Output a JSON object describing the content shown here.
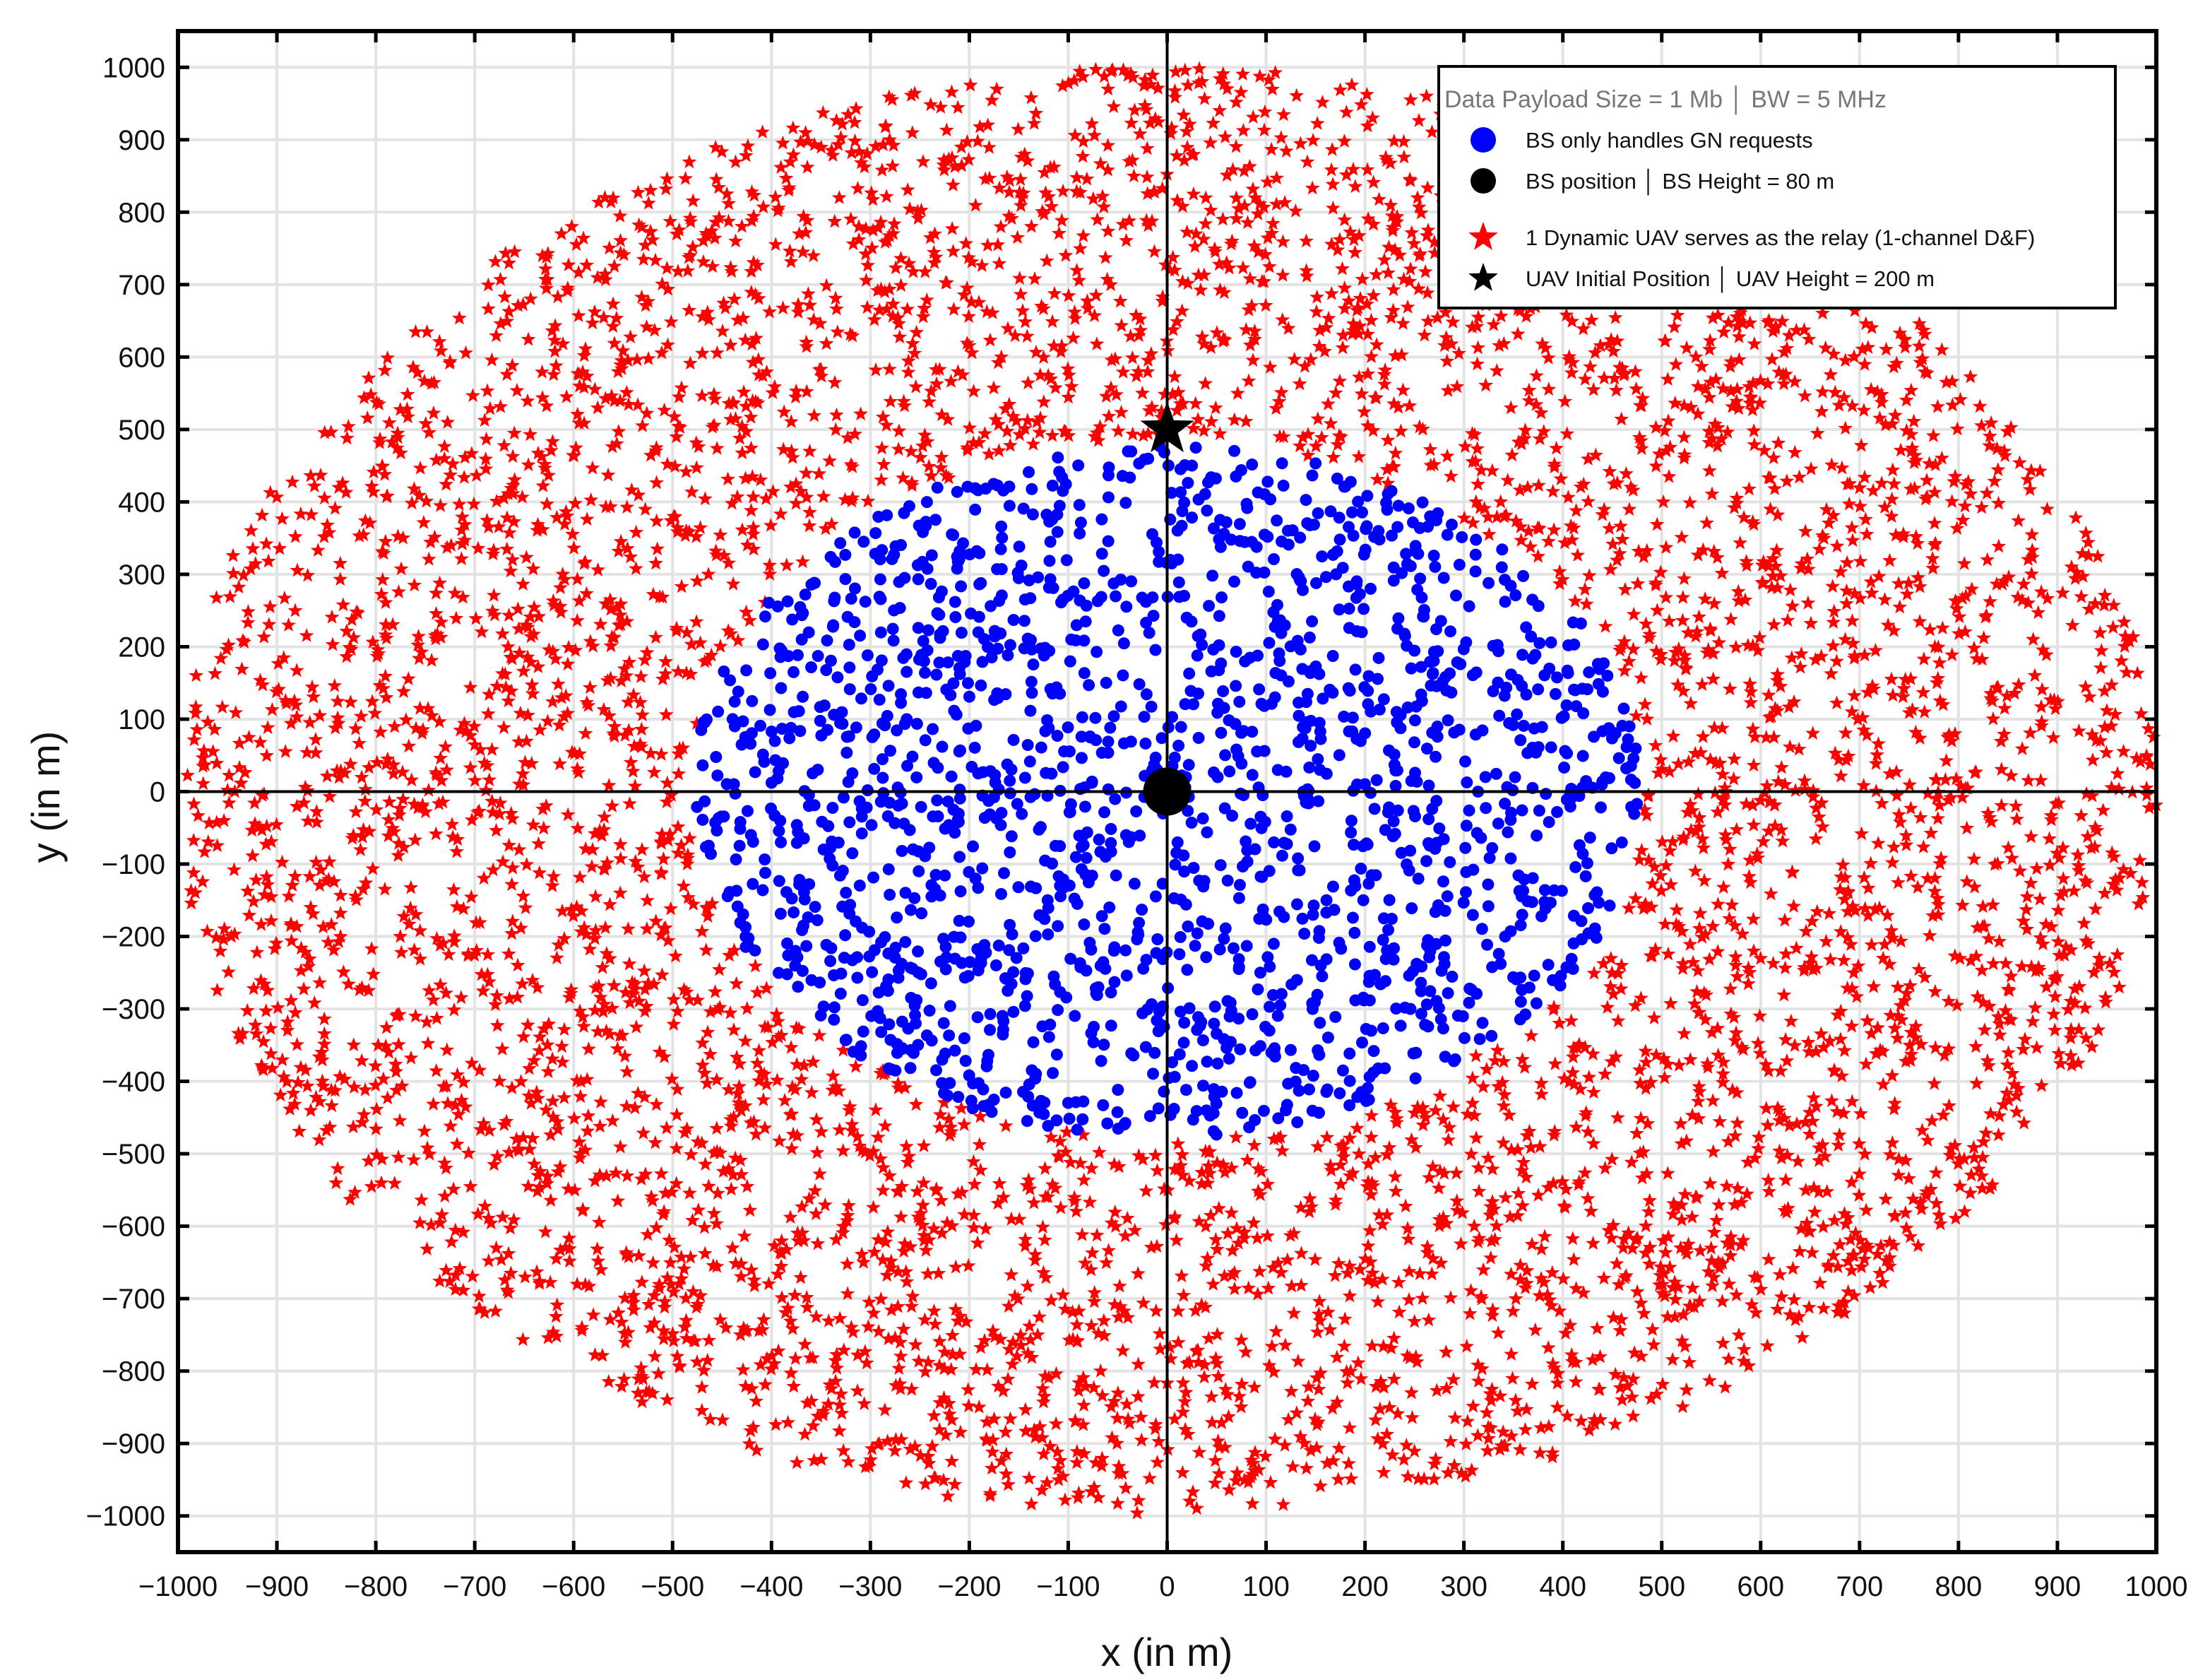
{
  "chart_data": {
    "type": "scatter",
    "xlabel": "x (in m)",
    "ylabel": "y (in m)",
    "xlim": [
      -1000,
      1000
    ],
    "ylim": [
      -1050,
      1050
    ],
    "x_ticks": [
      -1000,
      -900,
      -800,
      -700,
      -600,
      -500,
      -400,
      -300,
      -200,
      -100,
      0,
      100,
      200,
      300,
      400,
      500,
      600,
      700,
      800,
      900,
      1000
    ],
    "y_ticks": [
      -1000,
      -900,
      -800,
      -700,
      -600,
      -500,
      -400,
      -300,
      -200,
      -100,
      0,
      100,
      200,
      300,
      400,
      500,
      600,
      700,
      800,
      900,
      1000
    ],
    "x_tick_labels": [
      "-1000",
      "-900",
      "-800",
      "-700",
      "-600",
      "-500",
      "-400",
      "-300",
      "-200",
      "-100",
      "0",
      "100",
      "200",
      "300",
      "400",
      "500",
      "600",
      "700",
      "800",
      "900",
      "1000"
    ],
    "y_tick_labels": [
      "-1000",
      "-900",
      "-800",
      "-700",
      "-600",
      "-500",
      "-400",
      "-300",
      "-200",
      "-100",
      "0",
      "100",
      "200",
      "300",
      "400",
      "500",
      "600",
      "700",
      "800",
      "900",
      "1000"
    ],
    "grid": true,
    "crosshair_axes_at_origin": true,
    "legend": {
      "placement": "top-right",
      "title": "Data Payload Size = 1 Mb │ BW = 5 MHz",
      "entries": [
        {
          "label": "BS only handles GN requests",
          "marker": "circle",
          "color": "#0000ff"
        },
        {
          "label": "BS position │ BS Height = 80 m",
          "marker": "circle",
          "color": "#000000"
        },
        {
          "label": "1 Dynamic UAV serves as the relay (1-channel D&F)",
          "marker": "star",
          "color": "#ff0000"
        },
        {
          "label": "UAV Initial Position │ UAV Height = 200 m",
          "marker": "star",
          "color": "#000000"
        }
      ]
    },
    "series": [
      {
        "name": "1 Dynamic UAV serves as the relay (1-channel D&F)",
        "marker": "star",
        "color": "#ff0000",
        "distribution": {
          "shape": "annulus",
          "center": [
            0,
            0
          ],
          "inner_radius": 480,
          "outer_radius": 1000,
          "count": 5200,
          "seed": 7
        }
      },
      {
        "name": "BS only handles GN requests",
        "marker": "circle",
        "color": "#0000ff",
        "distribution": {
          "shape": "disk",
          "center": [
            0,
            0
          ],
          "radius": 480,
          "count": 1800,
          "seed": 13
        }
      },
      {
        "name": "BS position │ BS Height = 80 m",
        "marker": "circle",
        "color": "#000000",
        "points": [
          [
            0,
            0
          ]
        ]
      },
      {
        "name": "UAV Initial Position │ UAV Height = 200 m",
        "marker": "star",
        "color": "#000000",
        "points": [
          [
            0,
            500
          ]
        ]
      }
    ]
  }
}
